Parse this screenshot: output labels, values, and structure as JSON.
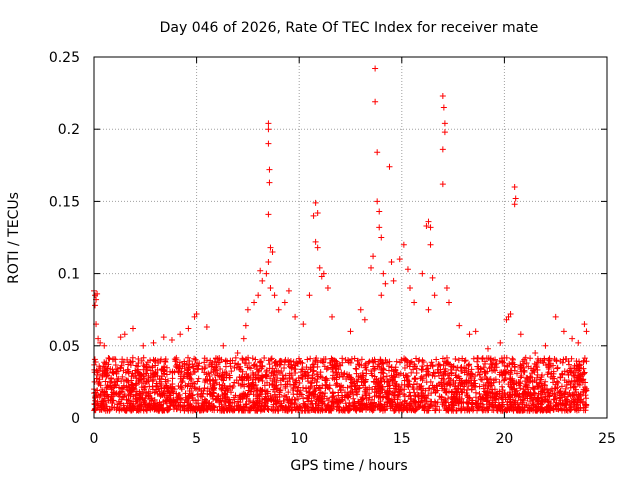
{
  "chart_data": {
    "type": "scatter",
    "title": "Day 046 of 2026, Rate Of TEC Index for receiver mate",
    "xlabel": "GPS time / hours",
    "ylabel": "ROTI / TECUs",
    "xlim": [
      0,
      25
    ],
    "ylim": [
      0,
      0.25
    ],
    "x_ticks": [
      0,
      5,
      10,
      15,
      20,
      25
    ],
    "x_tick_labels": [
      "0",
      "5",
      "10",
      "15",
      "20",
      "25"
    ],
    "y_ticks": [
      0,
      0.05,
      0.1,
      0.15,
      0.2,
      0.25
    ],
    "y_tick_labels": [
      "0",
      "0.05",
      "0.1",
      "0.15",
      "0.2",
      "0.25"
    ],
    "grid": true,
    "marker": "+",
    "series": [
      {
        "name": "ROTI",
        "color": "#ff0000",
        "note": "Dense cloud of points from 0 to 24 h, mostly 0.005-0.04 TECU/s; listed points are the visible outliers",
        "band": {
          "x_start": 0,
          "x_end": 24,
          "y_min": 0.005,
          "y_max": 0.04
        },
        "points": [
          [
            0.0,
            0.088
          ],
          [
            0.05,
            0.085
          ],
          [
            0.1,
            0.082
          ],
          [
            0.15,
            0.086
          ],
          [
            0.05,
            0.078
          ],
          [
            0.1,
            0.065
          ],
          [
            0.2,
            0.055
          ],
          [
            0.3,
            0.052
          ],
          [
            0.5,
            0.05
          ],
          [
            1.3,
            0.056
          ],
          [
            1.5,
            0.058
          ],
          [
            1.9,
            0.062
          ],
          [
            2.4,
            0.05
          ],
          [
            2.9,
            0.052
          ],
          [
            3.4,
            0.056
          ],
          [
            3.8,
            0.054
          ],
          [
            4.2,
            0.058
          ],
          [
            4.6,
            0.062
          ],
          [
            4.9,
            0.07
          ],
          [
            5.0,
            0.072
          ],
          [
            5.5,
            0.063
          ],
          [
            6.3,
            0.05
          ],
          [
            7.0,
            0.045
          ],
          [
            7.3,
            0.055
          ],
          [
            7.4,
            0.064
          ],
          [
            7.5,
            0.075
          ],
          [
            7.8,
            0.08
          ],
          [
            8.0,
            0.085
          ],
          [
            8.1,
            0.102
          ],
          [
            8.2,
            0.095
          ],
          [
            8.5,
            0.204
          ],
          [
            8.5,
            0.2
          ],
          [
            8.5,
            0.19
          ],
          [
            8.55,
            0.172
          ],
          [
            8.55,
            0.163
          ],
          [
            8.5,
            0.141
          ],
          [
            8.6,
            0.118
          ],
          [
            8.7,
            0.115
          ],
          [
            8.5,
            0.108
          ],
          [
            8.4,
            0.1
          ],
          [
            8.6,
            0.09
          ],
          [
            8.8,
            0.085
          ],
          [
            9.0,
            0.075
          ],
          [
            9.3,
            0.08
          ],
          [
            9.5,
            0.088
          ],
          [
            9.8,
            0.07
          ],
          [
            10.2,
            0.065
          ],
          [
            10.5,
            0.085
          ],
          [
            10.7,
            0.14
          ],
          [
            10.8,
            0.149
          ],
          [
            10.9,
            0.142
          ],
          [
            10.8,
            0.122
          ],
          [
            10.9,
            0.118
          ],
          [
            11.0,
            0.104
          ],
          [
            11.1,
            0.098
          ],
          [
            11.2,
            0.1
          ],
          [
            11.4,
            0.09
          ],
          [
            11.6,
            0.07
          ],
          [
            12.5,
            0.06
          ],
          [
            13.0,
            0.075
          ],
          [
            13.2,
            0.068
          ],
          [
            13.7,
            0.242
          ],
          [
            13.7,
            0.219
          ],
          [
            13.8,
            0.184
          ],
          [
            13.8,
            0.15
          ],
          [
            13.9,
            0.143
          ],
          [
            13.9,
            0.132
          ],
          [
            14.0,
            0.125
          ],
          [
            13.6,
            0.112
          ],
          [
            13.5,
            0.104
          ],
          [
            14.1,
            0.1
          ],
          [
            14.2,
            0.093
          ],
          [
            14.0,
            0.085
          ],
          [
            14.4,
            0.174
          ],
          [
            14.5,
            0.108
          ],
          [
            14.6,
            0.095
          ],
          [
            14.9,
            0.11
          ],
          [
            15.1,
            0.12
          ],
          [
            15.3,
            0.103
          ],
          [
            15.4,
            0.09
          ],
          [
            15.6,
            0.08
          ],
          [
            16.0,
            0.1
          ],
          [
            16.2,
            0.133
          ],
          [
            16.3,
            0.136
          ],
          [
            16.4,
            0.132
          ],
          [
            16.4,
            0.12
          ],
          [
            16.5,
            0.097
          ],
          [
            16.6,
            0.085
          ],
          [
            16.3,
            0.075
          ],
          [
            17.0,
            0.223
          ],
          [
            17.05,
            0.215
          ],
          [
            17.1,
            0.204
          ],
          [
            17.1,
            0.198
          ],
          [
            17.0,
            0.186
          ],
          [
            17.0,
            0.162
          ],
          [
            17.2,
            0.09
          ],
          [
            17.3,
            0.08
          ],
          [
            17.8,
            0.064
          ],
          [
            18.3,
            0.058
          ],
          [
            18.6,
            0.06
          ],
          [
            19.2,
            0.048
          ],
          [
            19.8,
            0.052
          ],
          [
            20.1,
            0.068
          ],
          [
            20.2,
            0.07
          ],
          [
            20.3,
            0.072
          ],
          [
            20.5,
            0.16
          ],
          [
            20.55,
            0.152
          ],
          [
            20.5,
            0.148
          ],
          [
            20.8,
            0.058
          ],
          [
            21.5,
            0.045
          ],
          [
            22.0,
            0.05
          ],
          [
            22.5,
            0.07
          ],
          [
            22.9,
            0.06
          ],
          [
            23.3,
            0.055
          ],
          [
            23.6,
            0.052
          ],
          [
            23.9,
            0.065
          ],
          [
            24.0,
            0.06
          ]
        ]
      }
    ]
  }
}
